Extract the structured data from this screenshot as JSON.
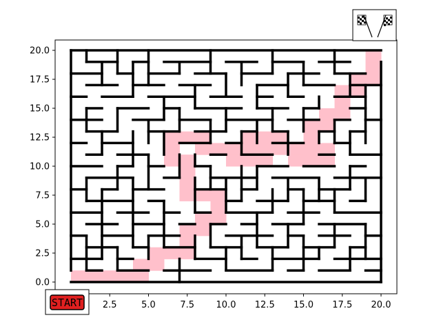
{
  "game": {
    "type": "maze",
    "start_label": "START",
    "goal_icon": "checkered-flags-icon",
    "colors": {
      "walls": "#000000",
      "path": "#ffc0cb",
      "start_badge": "#e02020",
      "background": "#ffffff"
    }
  },
  "axes": {
    "x_range": [
      0,
      20
    ],
    "y_range": [
      0,
      20
    ],
    "x_ticks": [
      "2.5",
      "5.0",
      "7.5",
      "10.0",
      "12.5",
      "15.0",
      "17.5",
      "20.0"
    ],
    "y_ticks": [
      "0.0",
      "2.5",
      "5.0",
      "7.5",
      "10.0",
      "12.5",
      "15.0",
      "17.5",
      "20.0"
    ]
  }
}
